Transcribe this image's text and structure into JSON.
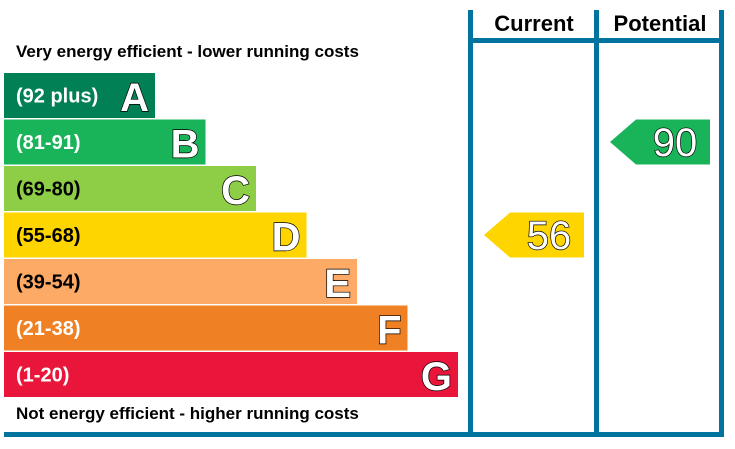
{
  "chart_data": {
    "type": "bar",
    "top_caption": "Very energy efficient - lower running costs",
    "bottom_caption": "Not energy efficient - higher running costs",
    "columns": {
      "current": "Current",
      "potential": "Potential"
    },
    "bands": [
      {
        "letter": "A",
        "range": "(92 plus)",
        "min": 92,
        "max": 100,
        "color": "#008054"
      },
      {
        "letter": "B",
        "range": "(81-91)",
        "min": 81,
        "max": 91,
        "color": "#19b459"
      },
      {
        "letter": "C",
        "range": "(69-80)",
        "min": 69,
        "max": 80,
        "color": "#8dce46"
      },
      {
        "letter": "D",
        "range": "(55-68)",
        "min": 55,
        "max": 68,
        "color": "#ffd500"
      },
      {
        "letter": "E",
        "range": "(39-54)",
        "min": 39,
        "max": 54,
        "color": "#fcaa65"
      },
      {
        "letter": "F",
        "range": "(21-38)",
        "min": 21,
        "max": 38,
        "color": "#ef8023"
      },
      {
        "letter": "G",
        "range": "(1-20)",
        "min": 1,
        "max": 20,
        "color": "#e9153b"
      }
    ],
    "current": {
      "value": 56,
      "band": "D",
      "label": "56"
    },
    "potential": {
      "value": 90,
      "band": "B",
      "label": "90"
    },
    "frame_color": "#00739e"
  }
}
